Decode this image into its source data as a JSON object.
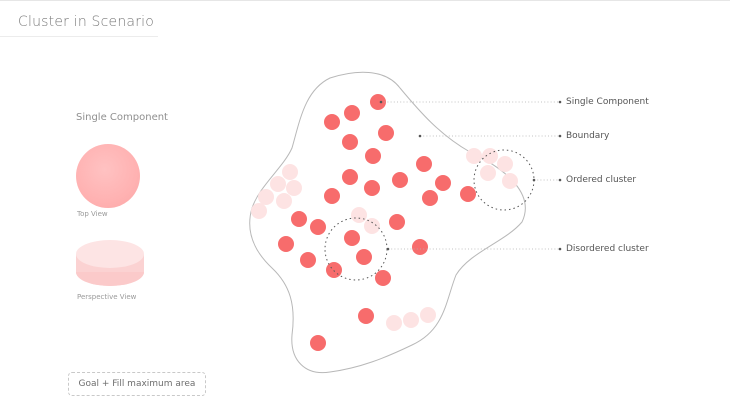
{
  "header": {
    "title": "Cluster in Scenario"
  },
  "legend": {
    "heading": "Single Component",
    "top_view_caption": "Top View",
    "perspective_caption": "Perspective View"
  },
  "goal": {
    "text": "Goal + Fill maximum area"
  },
  "callouts": {
    "single_component": "Single Component",
    "boundary": "Boundary",
    "ordered_cluster": "Ordered cluster",
    "disordered_cluster": "Disordered cluster"
  },
  "colors": {
    "component_filled": "#f76c6c",
    "component_faded": "#fde3e3",
    "boundary_stroke": "#b8b8b8",
    "leader_line": "#b0b0b0",
    "top_view_disc": "#ffb4b4"
  }
}
